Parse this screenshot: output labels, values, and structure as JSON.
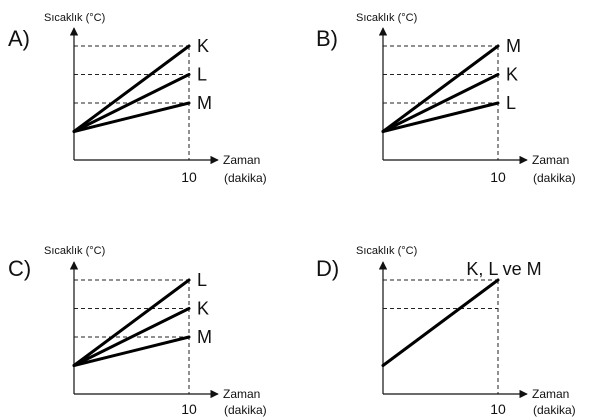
{
  "chart_data": [
    {
      "option": "A)",
      "type": "line",
      "ylabel": "Sıcaklık (°C)",
      "xlabel_line1": "Zaman",
      "xlabel_line2": "(dakika)",
      "x_tick": "10",
      "x": [
        0,
        10
      ],
      "start": 1,
      "ylim": [
        0,
        4
      ],
      "grid_levels": [
        2,
        3,
        4
      ],
      "series": [
        {
          "name": "K",
          "values": [
            1,
            4
          ]
        },
        {
          "name": "L",
          "values": [
            1,
            3
          ]
        },
        {
          "name": "M",
          "values": [
            1,
            2
          ]
        }
      ]
    },
    {
      "option": "B)",
      "type": "line",
      "ylabel": "Sıcaklık (°C)",
      "xlabel_line1": "Zaman",
      "xlabel_line2": "(dakika)",
      "x_tick": "10",
      "x": [
        0,
        10
      ],
      "start": 1,
      "ylim": [
        0,
        4
      ],
      "grid_levels": [
        2,
        3,
        4
      ],
      "series": [
        {
          "name": "M",
          "values": [
            1,
            4
          ]
        },
        {
          "name": "K",
          "values": [
            1,
            3
          ]
        },
        {
          "name": "L",
          "values": [
            1,
            2
          ]
        }
      ]
    },
    {
      "option": "C)",
      "type": "line",
      "ylabel": "Sıcaklık (°C)",
      "xlabel_line1": "Zaman",
      "xlabel_line2": "(dakika)",
      "x_tick": "10",
      "x": [
        0,
        10
      ],
      "start": 1,
      "ylim": [
        0,
        4
      ],
      "grid_levels": [
        2,
        3,
        4
      ],
      "series": [
        {
          "name": "L",
          "values": [
            1,
            4
          ]
        },
        {
          "name": "K",
          "values": [
            1,
            3
          ]
        },
        {
          "name": "M",
          "values": [
            1,
            2
          ]
        }
      ]
    },
    {
      "option": "D)",
      "type": "line",
      "ylabel": "Sıcaklık (°C)",
      "xlabel_line1": "Zaman",
      "xlabel_line2": "(dakika)",
      "x_tick": "10",
      "x": [
        0,
        10
      ],
      "start": 1,
      "ylim": [
        0,
        4
      ],
      "grid_levels": [
        3,
        4
      ],
      "series": [
        {
          "name": "K, L ve M",
          "values": [
            1,
            4
          ]
        }
      ]
    }
  ]
}
